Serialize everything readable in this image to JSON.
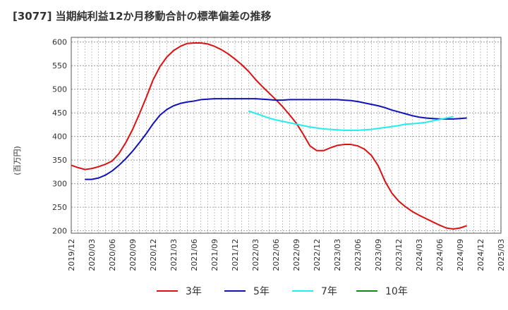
{
  "chart_data": {
    "type": "line",
    "title": "[3077]  当期純利益12か月移動合計の標準偏差の推移",
    "ylabel": "(百万円)",
    "xlabel": "",
    "ylim": [
      195,
      610
    ],
    "yticks": [
      200,
      250,
      300,
      350,
      400,
      450,
      500,
      550,
      600
    ],
    "xticks": [
      "2019/12",
      "2020/03",
      "2020/06",
      "2020/09",
      "2020/12",
      "2021/03",
      "2021/06",
      "2021/09",
      "2021/12",
      "2022/03",
      "2022/06",
      "2022/09",
      "2022/12",
      "2023/03",
      "2023/06",
      "2023/09",
      "2023/12",
      "2024/03",
      "2024/06",
      "2024/09",
      "2024/12",
      "2025/03"
    ],
    "grid": true,
    "legend_position": "bottom",
    "series": [
      {
        "name": "3年",
        "color": "#dd1111",
        "start": "2019/12",
        "values": [
          339,
          334,
          330,
          332,
          336,
          341,
          348,
          364,
          387,
          415,
          448,
          483,
          520,
          548,
          568,
          582,
          591,
          597,
          598,
          598,
          596,
          591,
          584,
          575,
          564,
          552,
          538,
          521,
          506,
          492,
          478,
          463,
          446,
          428,
          405,
          380,
          370,
          370,
          376,
          381,
          383,
          383,
          380,
          373,
          360,
          338,
          305,
          280,
          263,
          251,
          241,
          233,
          226,
          219,
          212,
          206,
          204,
          206,
          211
        ]
      },
      {
        "name": "5年",
        "color": "#1111bb",
        "start": "2020/02",
        "values": [
          309,
          309,
          312,
          318,
          327,
          339,
          353,
          369,
          387,
          406,
          427,
          445,
          457,
          465,
          470,
          473,
          475,
          478,
          479,
          480,
          480,
          480,
          480,
          480,
          480,
          480,
          479,
          478,
          477,
          477,
          478,
          478,
          478,
          478,
          478,
          478,
          478,
          478,
          477,
          476,
          474,
          471,
          468,
          465,
          461,
          456,
          452,
          448,
          444,
          441,
          439,
          438,
          437,
          437,
          437,
          438,
          439
        ]
      },
      {
        "name": "7年",
        "color": "#22eeee",
        "start": "2022/02",
        "values": [
          454,
          449,
          444,
          439,
          435,
          432,
          429,
          426,
          423,
          420,
          418,
          416,
          415,
          414,
          413,
          413,
          413,
          414,
          415,
          417,
          419,
          421,
          423,
          426,
          427,
          428,
          430,
          433,
          436,
          439,
          442
        ]
      },
      {
        "name": "10年",
        "color": "#118811",
        "start": "2019/12",
        "values": []
      }
    ]
  }
}
